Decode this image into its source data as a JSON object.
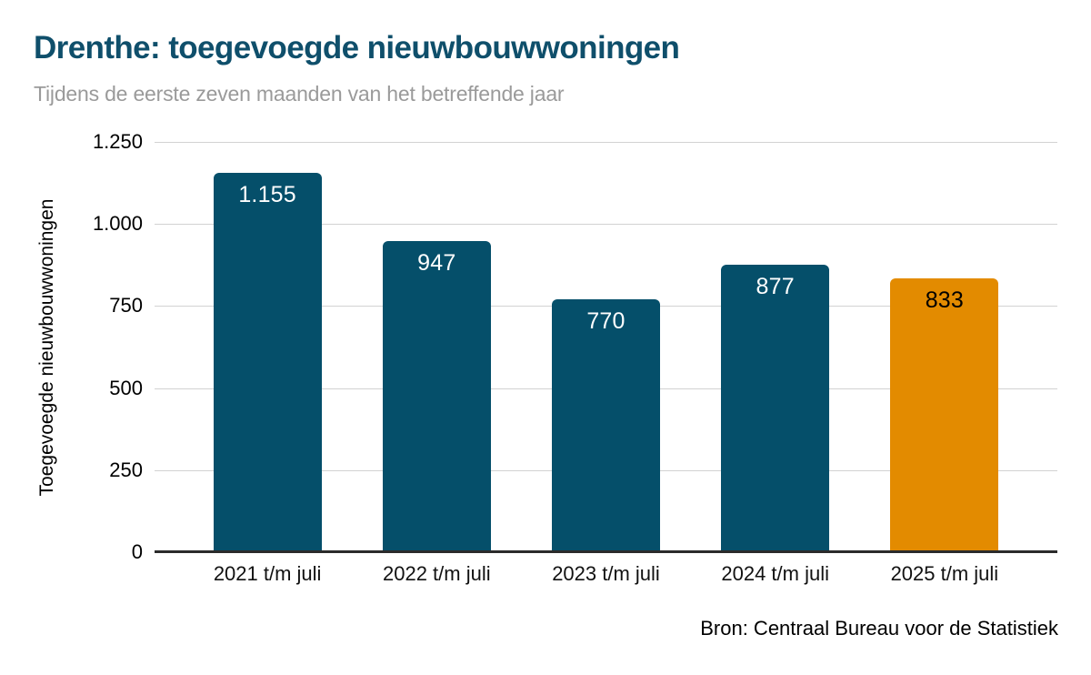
{
  "header": {
    "title": "Drenthe: toegevoegde nieuwbouwwoningen",
    "subtitle": "Tijdens de eerste zeven maanden van het betreffende jaar"
  },
  "footer": {
    "source": "Bron: Centraal Bureau voor de Statistiek"
  },
  "colors": {
    "bar": "#054f6a",
    "bar_highlight": "#e38b00",
    "bar_label": "#ffffff",
    "bar_label_highlight": "#000000",
    "title": "#0f4f6b",
    "subtitle": "#9a9a9a",
    "grid": "#d2d2d2",
    "axis": "#2b2b2b"
  },
  "chart_data": {
    "type": "bar",
    "title": "Drenthe: toegevoegde nieuwbouwwoningen",
    "subtitle": "Tijdens de eerste zeven maanden van het betreffende jaar",
    "categories": [
      "2021 t/m juli",
      "2022 t/m juli",
      "2023 t/m juli",
      "2024 t/m juli",
      "2025 t/m juli"
    ],
    "values": [
      1155,
      947,
      770,
      877,
      833
    ],
    "value_labels": [
      "1.155",
      "947",
      "770",
      "877",
      "833"
    ],
    "highlighted_index": 4,
    "xlabel": "",
    "ylabel": "Toegevoegde nieuwbouwwoningen",
    "ylim": [
      0,
      1250
    ],
    "yticks": [
      0,
      250,
      500,
      750,
      1000,
      1250
    ],
    "ytick_labels": [
      "0",
      "250",
      "500",
      "750",
      "1.000",
      "1.250"
    ],
    "grid": true,
    "legend_position": "none",
    "source": "Bron: Centraal Bureau voor de Statistiek"
  }
}
